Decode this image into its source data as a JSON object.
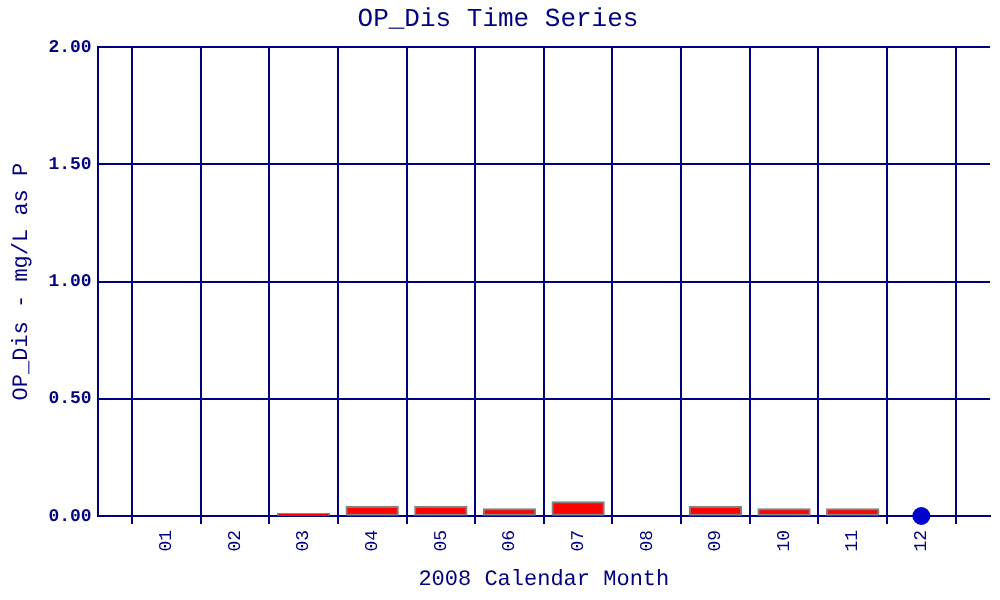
{
  "chart_data": {
    "type": "bar",
    "title": "OP_Dis Time Series",
    "xlabel": "2008 Calendar Month",
    "ylabel": "OP_Dis - mg/L as P",
    "xlim": [
      0,
      13
    ],
    "xticks": [
      {
        "value": 1,
        "label": "01"
      },
      {
        "value": 2,
        "label": "02"
      },
      {
        "value": 3,
        "label": "03"
      },
      {
        "value": 4,
        "label": "04"
      },
      {
        "value": 5,
        "label": "05"
      },
      {
        "value": 6,
        "label": "06"
      },
      {
        "value": 7,
        "label": "07"
      },
      {
        "value": 8,
        "label": "08"
      },
      {
        "value": 9,
        "label": "09"
      },
      {
        "value": 10,
        "label": "10"
      },
      {
        "value": 11,
        "label": "11"
      },
      {
        "value": 12,
        "label": "12"
      }
    ],
    "ylim": [
      0,
      2
    ],
    "yticks": [
      {
        "value": 0,
        "label": "0.00"
      },
      {
        "value": 0.5,
        "label": "0.50"
      },
      {
        "value": 1,
        "label": "1.00"
      },
      {
        "value": 1.5,
        "label": "1.50"
      },
      {
        "value": 2,
        "label": "2.00"
      }
    ],
    "grid": true,
    "legend": false,
    "series": [
      {
        "color": "#ff0000",
        "x": [
          1,
          2,
          3,
          4,
          5,
          6,
          7,
          8,
          9,
          10,
          11
        ],
        "values": [
          0,
          0,
          0.01,
          0.04,
          0.04,
          0.03,
          0.06,
          0,
          0.04,
          0.03,
          0.03
        ]
      },
      {
        "type": "scatter",
        "color": "#0000cc",
        "marker": "circle",
        "x": [
          12
        ],
        "values": [
          0
        ]
      }
    ]
  }
}
